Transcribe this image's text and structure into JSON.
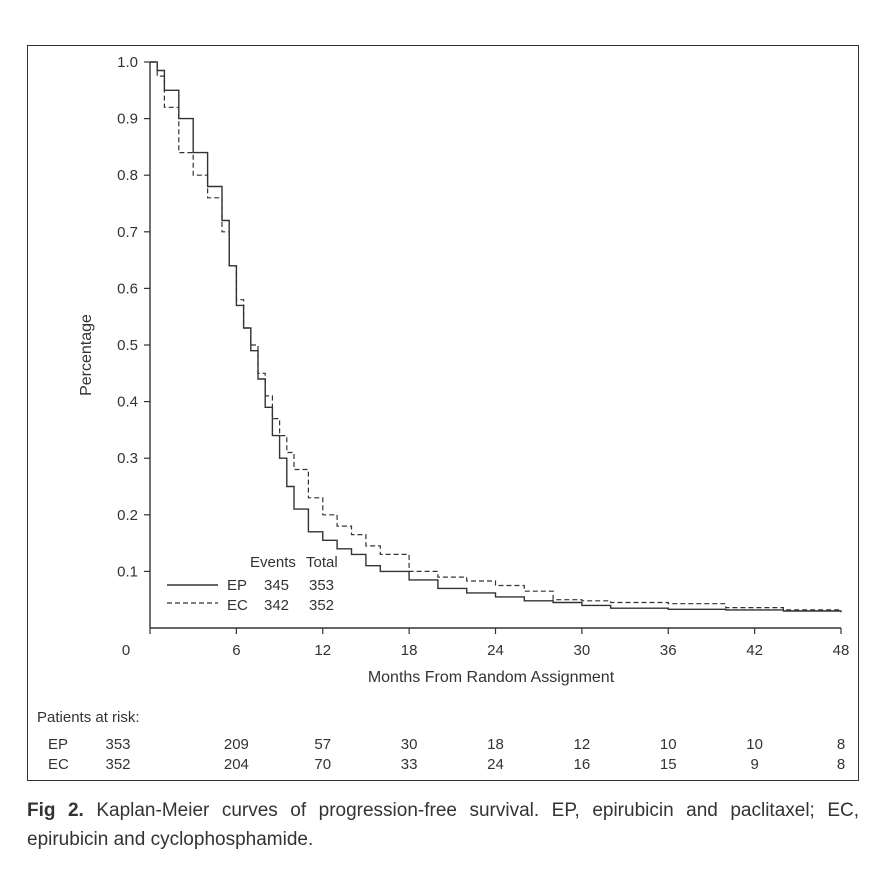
{
  "chart_data": {
    "type": "line",
    "xlabel": "Months From Random Assignment",
    "ylabel": "Percentage",
    "x_ticks": [
      0,
      6,
      12,
      18,
      24,
      30,
      36,
      42,
      48
    ],
    "y_ticks": [
      0.1,
      0.2,
      0.3,
      0.4,
      0.5,
      0.6,
      0.7,
      0.8,
      0.9,
      1.0
    ],
    "y_tick_labels": [
      "0.1",
      "0.2",
      "0.3",
      "0.4",
      "0.5",
      "0.6",
      "0.7",
      "0.8",
      "0.9",
      "1.0"
    ],
    "origin_label": "0",
    "xlim": [
      0,
      48
    ],
    "ylim": [
      0,
      1.0
    ],
    "grid": false,
    "legend": {
      "placement": "bottom-left",
      "header_events": "Events",
      "header_total": "Total",
      "entries": [
        {
          "name": "EP",
          "events": "345",
          "total": "353",
          "style": "solid"
        },
        {
          "name": "EC",
          "events": "342",
          "total": "352",
          "style": "dashed"
        }
      ]
    },
    "series": [
      {
        "name": "EP",
        "style": "solid",
        "x": [
          0,
          0.5,
          1,
          2,
          3,
          4,
          5,
          5.5,
          6,
          6.5,
          7,
          7.5,
          8,
          8.5,
          9,
          9.5,
          10,
          11,
          12,
          13,
          14,
          15,
          16,
          18,
          20,
          22,
          24,
          26,
          28,
          30,
          32,
          36,
          40,
          44,
          48
        ],
        "y": [
          1.0,
          0.985,
          0.95,
          0.9,
          0.84,
          0.78,
          0.72,
          0.64,
          0.57,
          0.53,
          0.49,
          0.44,
          0.39,
          0.34,
          0.3,
          0.25,
          0.21,
          0.17,
          0.155,
          0.14,
          0.13,
          0.11,
          0.1,
          0.085,
          0.07,
          0.062,
          0.055,
          0.048,
          0.045,
          0.04,
          0.035,
          0.033,
          0.032,
          0.03,
          0.028
        ]
      },
      {
        "name": "EC",
        "style": "dashed",
        "x": [
          0,
          0.5,
          1,
          2,
          3,
          4,
          5,
          5.5,
          6,
          6.5,
          7,
          7.5,
          8,
          8.5,
          9,
          9.5,
          10,
          11,
          12,
          13,
          14,
          15,
          16,
          18,
          20,
          22,
          24,
          26,
          28,
          30,
          32,
          36,
          40,
          44,
          48
        ],
        "y": [
          1.0,
          0.975,
          0.92,
          0.84,
          0.8,
          0.76,
          0.7,
          0.64,
          0.58,
          0.53,
          0.5,
          0.45,
          0.41,
          0.37,
          0.34,
          0.31,
          0.28,
          0.23,
          0.2,
          0.18,
          0.165,
          0.145,
          0.13,
          0.1,
          0.09,
          0.083,
          0.075,
          0.065,
          0.05,
          0.048,
          0.045,
          0.043,
          0.036,
          0.032,
          0.03
        ]
      }
    ]
  },
  "risk_table": {
    "title": "Patients at risk:",
    "rows": [
      {
        "label": "EP",
        "values": [
          "353",
          "209",
          "57",
          "30",
          "18",
          "12",
          "10",
          "10",
          "8"
        ]
      },
      {
        "label": "EC",
        "values": [
          "352",
          "204",
          "70",
          "33",
          "24",
          "16",
          "15",
          "9",
          "8"
        ]
      }
    ]
  },
  "caption": {
    "label": "Fig 2.",
    "text": " Kaplan-Meier curves of progression-free survival. EP, epirubicin and paclitaxel; EC, epirubicin and cyclophosphamide."
  }
}
